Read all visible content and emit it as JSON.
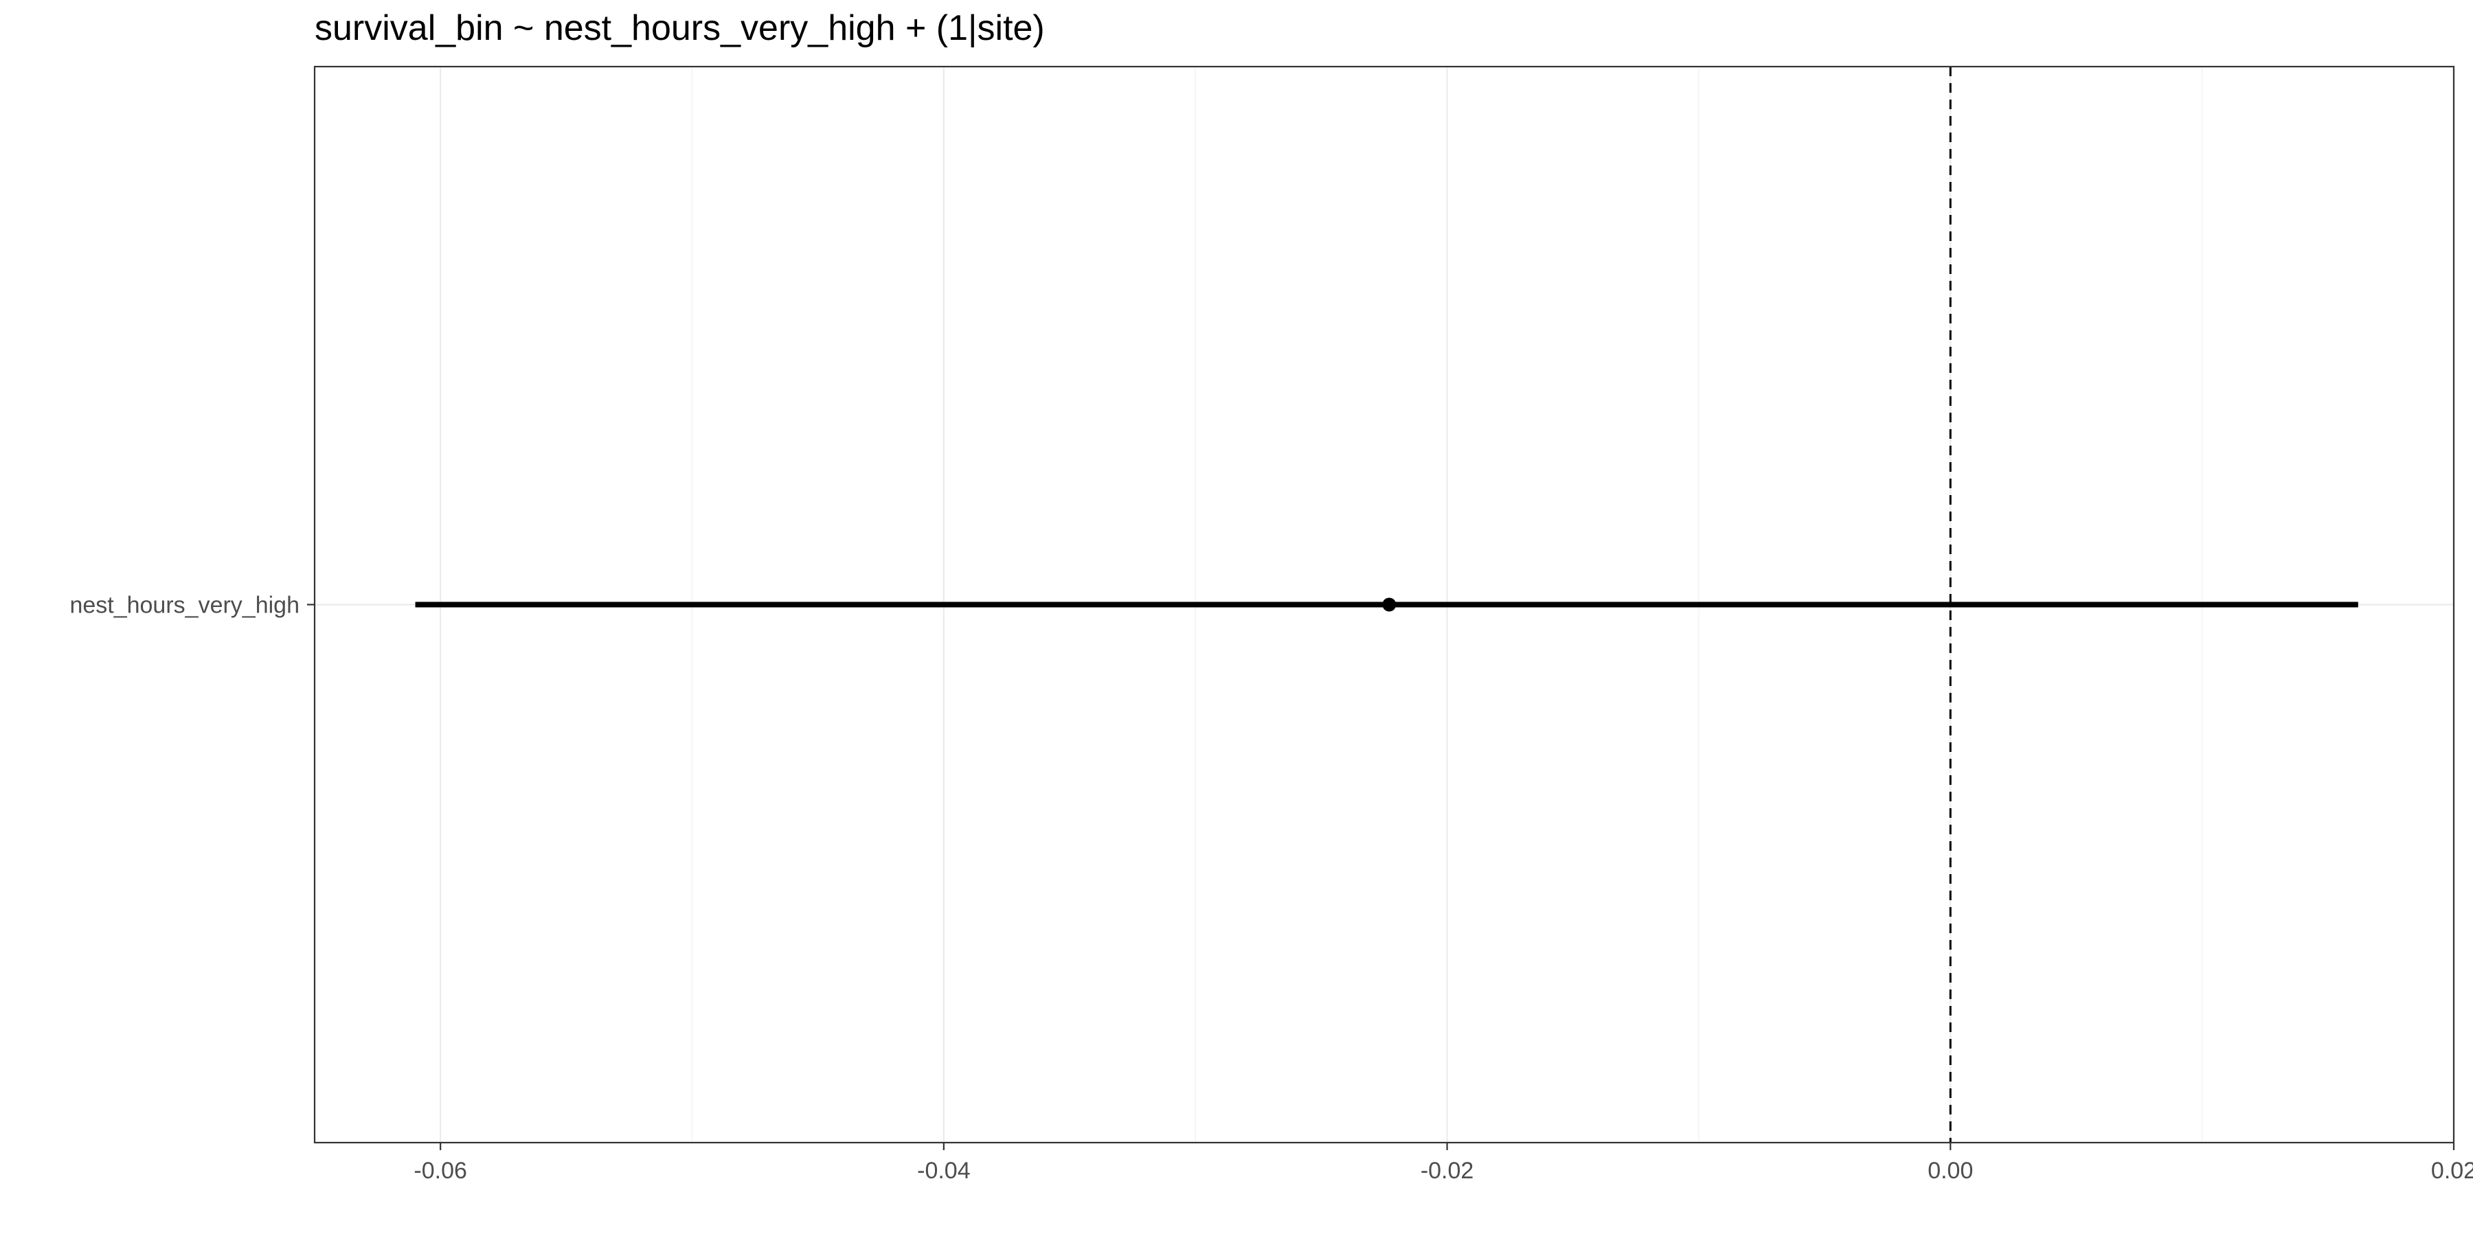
{
  "chart_data": {
    "type": "scatter",
    "title": "survival_bin ~ nest_hours_very_high + (1|site)",
    "xlabel": "",
    "ylabel": "",
    "xlim": [
      -0.065,
      0.02
    ],
    "x_ticks": [
      -0.06,
      -0.04,
      -0.02,
      0.0,
      0.02
    ],
    "x_tick_labels": [
      "-0.06",
      "-0.04",
      "-0.02",
      "0.00",
      "0.02"
    ],
    "x_minor_ticks": [
      -0.05,
      -0.03,
      -0.01,
      0.01
    ],
    "categories": [
      "nest_hours_very_high"
    ],
    "estimates": [
      {
        "term": "nest_hours_very_high",
        "estimate": -0.0223,
        "conf_low": -0.061,
        "conf_high": 0.0162
      }
    ],
    "reference_line": {
      "x": 0.0,
      "style": "dashed"
    },
    "grid": true,
    "legend": "none"
  }
}
